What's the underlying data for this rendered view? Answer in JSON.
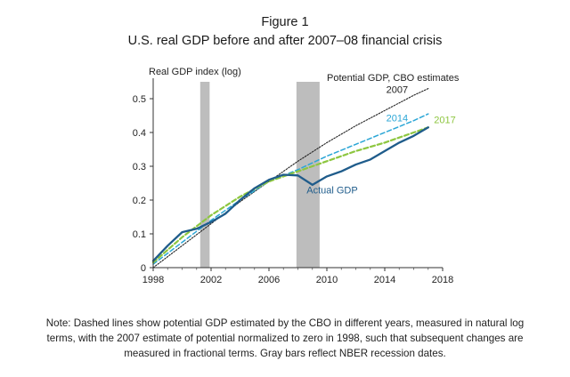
{
  "figure": {
    "title": "Figure 1",
    "subtitle": "U.S. real GDP before and after 2007–08 financial crisis",
    "note": "Note: Dashed lines show potential GDP estimated by the CBO in different years, measured in natural log terms, with the 2007 estimate of potential normalized to zero in 1998, such that subsequent changes are measured in fractional terms. Gray bars reflect NBER recession dates."
  },
  "chart_data": {
    "type": "line",
    "title": "",
    "ylabel": "Real GDP index (log)",
    "xlabel": "",
    "xlim": [
      1998,
      2018
    ],
    "ylim": [
      0,
      0.55
    ],
    "x_ticks": [
      "1998",
      "2002",
      "2006",
      "2010",
      "2014",
      "2018"
    ],
    "y_ticks": [
      "0",
      "0.1",
      "0.2",
      "0.3",
      "0.4",
      "0.5"
    ],
    "grid": false,
    "recessions": [
      {
        "start": 2001.25,
        "end": 2001.9
      },
      {
        "start": 2007.9,
        "end": 2009.5
      }
    ],
    "annotations": [
      {
        "text": "Potential GDP, CBO estimates",
        "x": 2010.0,
        "y": 0.553,
        "color": "#222222"
      },
      {
        "text": "2007",
        "x": 2014.1,
        "y": 0.517,
        "color": "#222222"
      },
      {
        "text": "2014",
        "x": 2014.1,
        "y": 0.433,
        "color": "#2ba6d6"
      },
      {
        "text": "2017",
        "x": 2017.4,
        "y": 0.427,
        "color": "#8dc63f"
      },
      {
        "text": "Actual GDP",
        "x": 2008.6,
        "y": 0.22,
        "color": "#1f5c8b"
      }
    ],
    "series": [
      {
        "name": "2007",
        "color": "#222222",
        "style": "dotted",
        "x": [
          1998,
          2000,
          2002,
          2004,
          2006,
          2008,
          2010,
          2012,
          2014,
          2016,
          2017
        ],
        "y": [
          0.0,
          0.065,
          0.13,
          0.195,
          0.255,
          0.315,
          0.37,
          0.42,
          0.465,
          0.51,
          0.53
        ]
      },
      {
        "name": "2014",
        "color": "#2ba6d6",
        "style": "dashed",
        "x": [
          1998,
          2000,
          2002,
          2004,
          2006,
          2008,
          2010,
          2012,
          2014,
          2016,
          2017
        ],
        "y": [
          0.01,
          0.075,
          0.14,
          0.2,
          0.255,
          0.29,
          0.33,
          0.365,
          0.4,
          0.435,
          0.455
        ]
      },
      {
        "name": "2017",
        "color": "#8dc63f",
        "style": "dashed",
        "x": [
          1998,
          2000,
          2002,
          2004,
          2006,
          2008,
          2010,
          2012,
          2014,
          2016,
          2017
        ],
        "y": [
          0.015,
          0.09,
          0.155,
          0.21,
          0.255,
          0.285,
          0.315,
          0.345,
          0.37,
          0.4,
          0.415
        ]
      },
      {
        "name": "Actual GDP",
        "color": "#1f5c8b",
        "style": "solid",
        "x": [
          1998,
          1999,
          2000,
          2001,
          2002,
          2003,
          2004,
          2005,
          2006,
          2007,
          2008,
          2009,
          2010,
          2011,
          2012,
          2013,
          2014,
          2015,
          2016,
          2017
        ],
        "y": [
          0.02,
          0.065,
          0.105,
          0.115,
          0.135,
          0.16,
          0.2,
          0.235,
          0.26,
          0.275,
          0.273,
          0.245,
          0.27,
          0.285,
          0.305,
          0.32,
          0.345,
          0.37,
          0.39,
          0.415
        ]
      }
    ]
  }
}
